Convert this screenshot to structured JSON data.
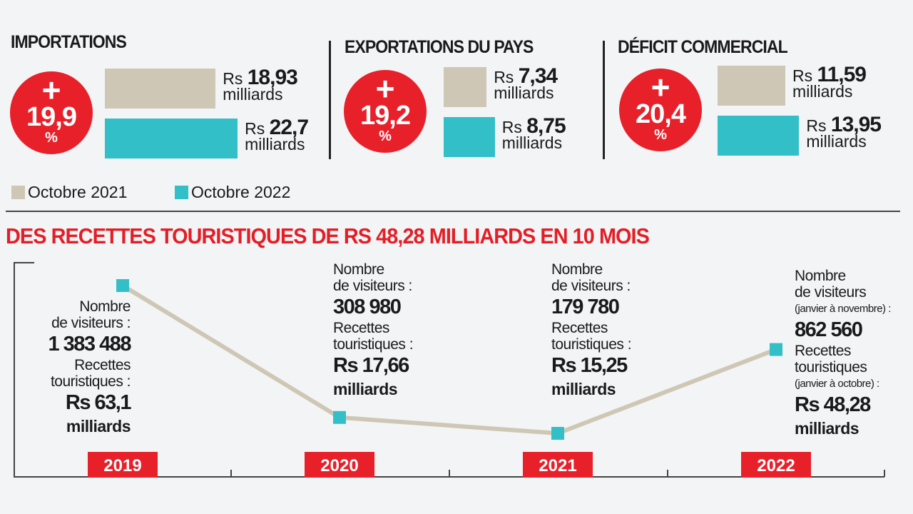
{
  "legend": {
    "y2021": "Octobre 2021",
    "y2022": "Octobre 2022"
  },
  "panels": [
    {
      "title": "IMPORTATIONS",
      "plus": "+",
      "pct": "19,9",
      "pct_sym": "%",
      "v2021": 18.93,
      "v2021_label": "18,93",
      "v2022": 22.7,
      "v2022_label": "22,7",
      "currency": "Rs",
      "unit": "milliards"
    },
    {
      "title": "EXPORTATIONS DU PAYS",
      "plus": "+",
      "pct": "19,2",
      "pct_sym": "%",
      "v2021": 7.34,
      "v2021_label": "7,34",
      "v2022": 8.75,
      "v2022_label": "8,75",
      "currency": "Rs",
      "unit": "milliards"
    },
    {
      "title": "DÉFICIT COMMERCIAL",
      "plus": "+",
      "pct": "20,4",
      "pct_sym": "%",
      "v2021": 11.59,
      "v2021_label": "11,59",
      "v2022": 13.95,
      "v2022_label": "13,95",
      "currency": "Rs",
      "unit": "milliards"
    }
  ],
  "colors": {
    "beige": "#cfc7b5",
    "teal": "#33bfc8",
    "red": "#e8202a"
  },
  "chart_data": {
    "type": "line",
    "title": "DES RECETTES TOURISTIQUES DE RS 48,28 MILLIARDS EN 10 MOIS",
    "categories": [
      "2019",
      "2020",
      "2021",
      "2022"
    ],
    "series": [
      {
        "name": "Nombre de visiteurs",
        "values": [
          1383488,
          308980,
          179780,
          862560
        ]
      }
    ],
    "points": [
      {
        "year": "2019",
        "visitors_label": "Nombre",
        "visitors_label2": "de visiteurs :",
        "visitors_note": "",
        "visitors": "1 383 488",
        "receipts_label": "Recettes",
        "receipts_label2": "touristiques :",
        "receipts_note": "",
        "receipts": "Rs 63,1",
        "unit": "milliards"
      },
      {
        "year": "2020",
        "visitors_label": "Nombre",
        "visitors_label2": "de visiteurs :",
        "visitors_note": "",
        "visitors": "308 980",
        "receipts_label": "Recettes",
        "receipts_label2": "touristiques :",
        "receipts_note": "",
        "receipts": "Rs 17,66",
        "unit": "milliards"
      },
      {
        "year": "2021",
        "visitors_label": "Nombre",
        "visitors_label2": "de visiteurs :",
        "visitors_note": "",
        "visitors": "179 780",
        "receipts_label": "Recettes",
        "receipts_label2": "touristiques :",
        "receipts_note": "",
        "receipts": "Rs 15,25",
        "unit": "milliards"
      },
      {
        "year": "2022",
        "visitors_label": "Nombre",
        "visitors_label2": "de visiteurs",
        "visitors_note": "(janvier à novembre) :",
        "visitors": "862 560",
        "receipts_label": "Recettes",
        "receipts_label2": "touristiques",
        "receipts_note": "(janvier à octobre) :",
        "receipts": "Rs 48,28",
        "unit": "milliards"
      }
    ]
  }
}
